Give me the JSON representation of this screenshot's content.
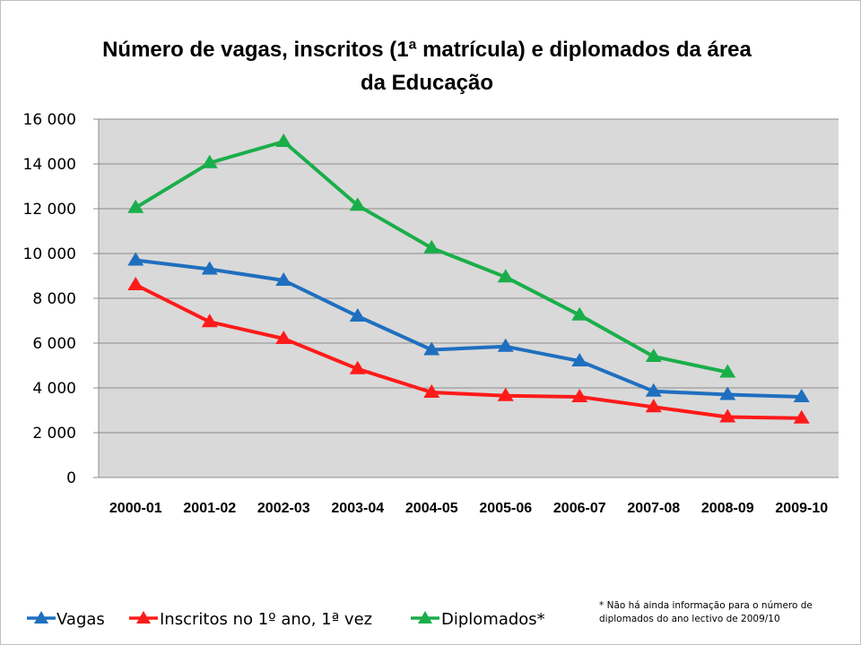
{
  "chart_data": {
    "type": "line",
    "title_lines": [
      "Número de vagas, inscritos (1ª matrícula) e diplomados da área",
      "da Educação"
    ],
    "categories": [
      "2000-01",
      "2001-02",
      "2002-03",
      "2003-04",
      "2004-05",
      "2005-06",
      "2006-07",
      "2007-08",
      "2008-09",
      "2009-10"
    ],
    "yticks": [
      "0",
      "2 000",
      "4 000",
      "6 000",
      "8 000",
      "10 000",
      "12 000",
      "14 000",
      "16 000"
    ],
    "ylim": [
      0,
      16000
    ],
    "grid": true,
    "legend_position": "bottom",
    "series": [
      {
        "name": "Vagas",
        "color": "#1f6fbf",
        "values": [
          9700,
          9300,
          8800,
          7200,
          5700,
          5850,
          5200,
          3850,
          3700,
          3600
        ]
      },
      {
        "name": "Inscritos no 1º ano, 1ª vez",
        "color": "#ff1a1a",
        "values": [
          8600,
          6950,
          6200,
          4850,
          3800,
          3650,
          3600,
          3150,
          2700,
          2650
        ]
      },
      {
        "name": "Diplomados*",
        "color": "#1aae4a",
        "values": [
          12050,
          14050,
          15000,
          12150,
          10250,
          8950,
          7250,
          5400,
          4700,
          null
        ]
      }
    ],
    "footnote_lines": [
      "* Não há ainda informação para o número de",
      "diplomados do ano lectivo de 2009/10"
    ]
  }
}
